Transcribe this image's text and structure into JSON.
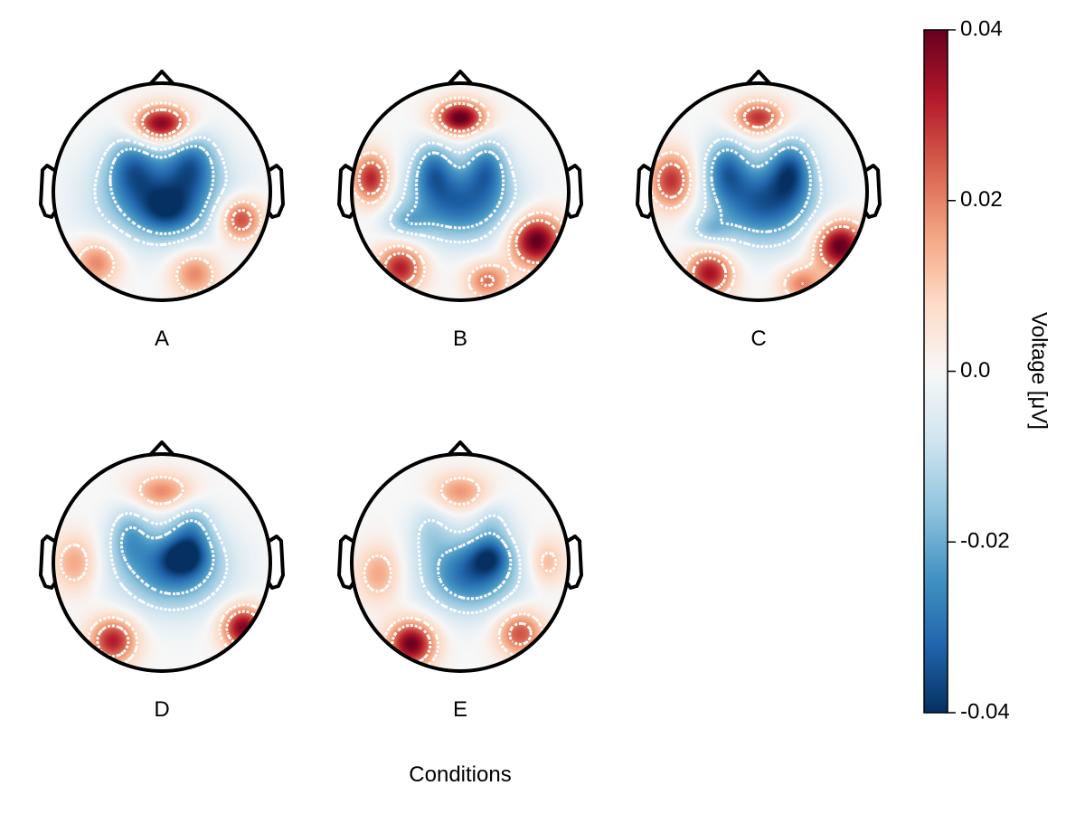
{
  "chart_data": {
    "type": "heatmap",
    "title": "",
    "xlabel": "Conditions",
    "colorbar": {
      "label": "Voltage [μV]",
      "range": [
        -0.04,
        0.04
      ],
      "ticks": [
        "-0.04",
        "-0.02",
        "0.0",
        "0.02",
        "0.04"
      ],
      "tick_values": [
        -0.04,
        -0.02,
        0.0,
        0.02,
        0.04
      ],
      "colormap": "RdBu_r",
      "color_min": "#053061",
      "color_mid": "#f7f7f7",
      "color_max": "#67001f"
    },
    "contour_style": "white dotted",
    "panels": [
      {
        "label": "A",
        "blobs": [
          {
            "x": 0.0,
            "y": 0.62,
            "sx": 0.18,
            "sy": 0.12,
            "v": 0.04
          },
          {
            "x": 0.0,
            "y": -0.05,
            "sx": 0.4,
            "sy": 0.28,
            "v": -0.03
          },
          {
            "x": 0.05,
            "y": -0.18,
            "sx": 0.18,
            "sy": 0.15,
            "v": -0.015
          },
          {
            "x": -0.28,
            "y": 0.25,
            "sx": 0.16,
            "sy": 0.2,
            "v": -0.02
          },
          {
            "x": 0.28,
            "y": 0.28,
            "sx": 0.16,
            "sy": 0.2,
            "v": -0.022
          },
          {
            "x": 0.72,
            "y": -0.25,
            "sx": 0.14,
            "sy": 0.14,
            "v": 0.03
          },
          {
            "x": -0.6,
            "y": -0.65,
            "sx": 0.15,
            "sy": 0.15,
            "v": 0.02
          },
          {
            "x": 0.3,
            "y": -0.75,
            "sx": 0.15,
            "sy": 0.15,
            "v": 0.02
          }
        ]
      },
      {
        "label": "B",
        "blobs": [
          {
            "x": 0.0,
            "y": 0.68,
            "sx": 0.16,
            "sy": 0.11,
            "v": 0.042
          },
          {
            "x": 0.0,
            "y": -0.1,
            "sx": 0.34,
            "sy": 0.24,
            "v": -0.032
          },
          {
            "x": -0.25,
            "y": 0.22,
            "sx": 0.13,
            "sy": 0.18,
            "v": -0.022
          },
          {
            "x": 0.25,
            "y": 0.24,
            "sx": 0.13,
            "sy": 0.18,
            "v": -0.022
          },
          {
            "x": -0.5,
            "y": -0.28,
            "sx": 0.14,
            "sy": 0.1,
            "v": -0.012
          },
          {
            "x": -0.82,
            "y": 0.12,
            "sx": 0.12,
            "sy": 0.16,
            "v": 0.032
          },
          {
            "x": 0.7,
            "y": -0.45,
            "sx": 0.17,
            "sy": 0.17,
            "v": 0.042
          },
          {
            "x": -0.55,
            "y": -0.7,
            "sx": 0.15,
            "sy": 0.15,
            "v": 0.032
          },
          {
            "x": 0.25,
            "y": -0.82,
            "sx": 0.14,
            "sy": 0.12,
            "v": 0.022
          }
        ]
      },
      {
        "label": "C",
        "blobs": [
          {
            "x": 0.0,
            "y": 0.68,
            "sx": 0.16,
            "sy": 0.11,
            "v": 0.03
          },
          {
            "x": 0.05,
            "y": -0.1,
            "sx": 0.32,
            "sy": 0.26,
            "v": -0.034
          },
          {
            "x": -0.3,
            "y": 0.22,
            "sx": 0.14,
            "sy": 0.2,
            "v": -0.024
          },
          {
            "x": 0.3,
            "y": 0.22,
            "sx": 0.14,
            "sy": 0.2,
            "v": -0.026
          },
          {
            "x": -0.45,
            "y": -0.35,
            "sx": 0.13,
            "sy": 0.1,
            "v": -0.012
          },
          {
            "x": -0.8,
            "y": 0.1,
            "sx": 0.14,
            "sy": 0.18,
            "v": 0.03
          },
          {
            "x": 0.75,
            "y": -0.5,
            "sx": 0.16,
            "sy": 0.16,
            "v": 0.042
          },
          {
            "x": -0.45,
            "y": -0.75,
            "sx": 0.15,
            "sy": 0.15,
            "v": 0.034
          },
          {
            "x": 0.4,
            "y": -0.85,
            "sx": 0.14,
            "sy": 0.12,
            "v": 0.02
          }
        ]
      },
      {
        "label": "D",
        "blobs": [
          {
            "x": 0.0,
            "y": 0.65,
            "sx": 0.2,
            "sy": 0.12,
            "v": 0.02
          },
          {
            "x": 0.1,
            "y": -0.05,
            "sx": 0.33,
            "sy": 0.26,
            "v": -0.03
          },
          {
            "x": 0.2,
            "y": 0.05,
            "sx": 0.15,
            "sy": 0.12,
            "v": -0.018
          },
          {
            "x": -0.3,
            "y": 0.25,
            "sx": 0.13,
            "sy": 0.2,
            "v": -0.016
          },
          {
            "x": 0.28,
            "y": 0.3,
            "sx": 0.13,
            "sy": 0.18,
            "v": -0.016
          },
          {
            "x": 0.75,
            "y": -0.6,
            "sx": 0.14,
            "sy": 0.14,
            "v": 0.038
          },
          {
            "x": -0.45,
            "y": -0.72,
            "sx": 0.15,
            "sy": 0.15,
            "v": 0.032
          },
          {
            "x": -0.8,
            "y": 0.0,
            "sx": 0.14,
            "sy": 0.18,
            "v": 0.016
          }
        ]
      },
      {
        "label": "E",
        "blobs": [
          {
            "x": 0.0,
            "y": 0.65,
            "sx": 0.18,
            "sy": 0.12,
            "v": 0.018
          },
          {
            "x": 0.1,
            "y": -0.1,
            "sx": 0.3,
            "sy": 0.24,
            "v": -0.032
          },
          {
            "x": 0.28,
            "y": 0.05,
            "sx": 0.13,
            "sy": 0.12,
            "v": -0.018
          },
          {
            "x": -0.28,
            "y": 0.3,
            "sx": 0.13,
            "sy": 0.18,
            "v": -0.01
          },
          {
            "x": 0.3,
            "y": 0.35,
            "sx": 0.12,
            "sy": 0.16,
            "v": -0.01
          },
          {
            "x": -0.45,
            "y": -0.75,
            "sx": 0.15,
            "sy": 0.15,
            "v": 0.04
          },
          {
            "x": 0.55,
            "y": -0.65,
            "sx": 0.15,
            "sy": 0.15,
            "v": 0.026
          },
          {
            "x": -0.75,
            "y": -0.1,
            "sx": 0.14,
            "sy": 0.18,
            "v": 0.016
          },
          {
            "x": 0.8,
            "y": 0.0,
            "sx": 0.12,
            "sy": 0.15,
            "v": 0.014
          }
        ]
      }
    ]
  }
}
